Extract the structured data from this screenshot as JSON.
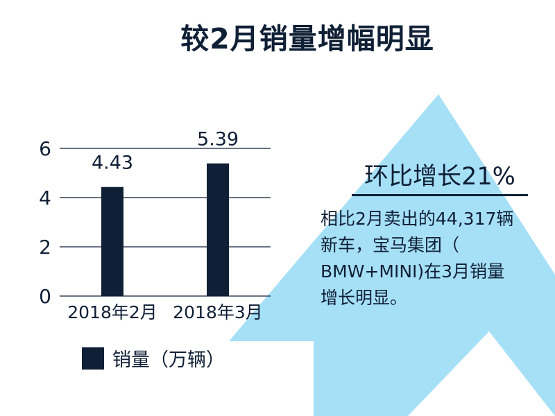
{
  "title": "较2月销量增幅明显",
  "headline": "环比增长21%",
  "description_lines": [
    "相比2月卖出的44,317辆",
    "新车，宝马集团（",
    "BMW+MINI)在3月销量",
    "增长明显。"
  ],
  "colors": {
    "bar": "#0f1f35",
    "text": "#0f1f35",
    "arrow": "#a6e0f7",
    "gridline": "#0f1f35"
  },
  "chart_data": {
    "type": "bar",
    "categories": [
      "2018年2月",
      "2018年3月"
    ],
    "series": [
      {
        "name": "销量（万辆）",
        "values": [
          4.43,
          5.39
        ]
      }
    ],
    "data_labels": [
      "4.43",
      "5.39"
    ],
    "yticks": [
      "0",
      "2",
      "4",
      "6"
    ],
    "ylim": [
      0,
      6
    ],
    "grid": true,
    "legend_position": "bottom-left"
  }
}
